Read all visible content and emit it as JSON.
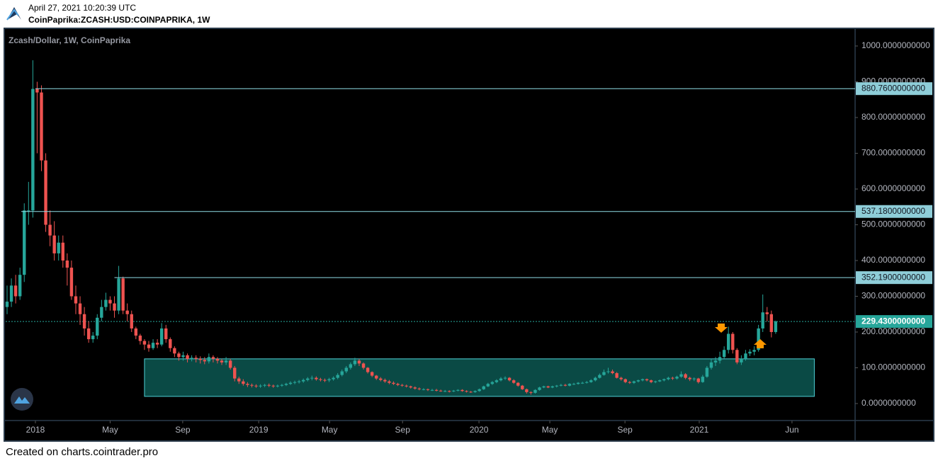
{
  "header": {
    "timestamp": "April 27, 2021 10:20:39 UTC",
    "symbol": "CoinPaprika:ZCASH:USD:COINPAPRIKA, 1W"
  },
  "footer": "Created on charts.cointrader.pro",
  "chart_data": {
    "type": "candlestick",
    "title": "Zcash/Dollar, 1W, CoinPaprika",
    "up_color": "#26a69a",
    "down_color": "#ef5350",
    "categories": [
      null,
      null,
      null,
      null,
      null,
      null,
      null,
      null,
      null,
      null,
      null,
      null,
      null,
      null,
      null,
      null,
      null,
      null,
      null,
      null,
      null,
      null,
      null,
      null,
      null,
      null,
      null,
      null,
      null,
      null,
      null,
      null,
      null,
      null,
      null,
      null,
      null,
      null,
      null,
      null,
      null,
      null,
      null,
      null,
      null,
      null,
      null,
      null,
      null,
      null,
      null,
      null,
      null,
      null,
      null,
      null,
      null,
      null,
      null,
      null,
      null,
      null,
      null,
      null,
      null,
      null,
      null,
      null,
      null,
      null,
      null,
      null,
      null,
      null,
      null,
      null,
      null,
      null,
      null,
      null,
      null,
      null,
      null,
      null,
      null,
      null,
      null,
      null,
      null,
      null,
      null,
      null,
      null,
      null,
      null,
      null,
      null,
      null,
      null,
      null,
      null,
      null,
      null,
      null,
      null,
      null,
      null,
      null,
      null,
      null,
      null,
      null,
      null,
      null,
      null,
      null,
      null,
      null,
      null,
      null,
      null,
      null,
      null,
      null,
      null,
      null,
      null,
      null,
      null,
      null,
      null,
      null,
      null,
      null,
      null,
      null,
      null,
      null,
      null,
      null,
      null,
      null,
      null,
      null,
      null,
      null,
      null,
      null,
      null,
      null,
      null,
      null,
      null,
      null,
      null,
      null,
      null,
      null,
      null,
      null,
      null,
      null,
      null,
      null,
      null,
      null,
      null,
      null,
      null,
      null,
      null,
      null,
      null,
      null,
      null,
      null,
      null,
      null,
      null,
      null
    ],
    "open": [
      270,
      285,
      330,
      300,
      360,
      540,
      540,
      880,
      870,
      680,
      500,
      470,
      420,
      450,
      400,
      380,
      300,
      280,
      250,
      210,
      180,
      190,
      240,
      270,
      290,
      280,
      260,
      350,
      260,
      250,
      210,
      190,
      175,
      165,
      155,
      170,
      165,
      210,
      180,
      155,
      140,
      130,
      135,
      125,
      128,
      125,
      122,
      118,
      130,
      125,
      120,
      115,
      120,
      100,
      70,
      62,
      55,
      52,
      50,
      48,
      50,
      52,
      50,
      48,
      50,
      52,
      55,
      58,
      60,
      62,
      66,
      70,
      72,
      68,
      66,
      65,
      68,
      72,
      80,
      90,
      100,
      110,
      120,
      112,
      100,
      88,
      78,
      70,
      66,
      62,
      58,
      55,
      52,
      50,
      48,
      45,
      42,
      40,
      40,
      38,
      38,
      36,
      35,
      35,
      34,
      36,
      38,
      35,
      33,
      32,
      35,
      40,
      48,
      55,
      60,
      65,
      70,
      72,
      65,
      58,
      50,
      40,
      32,
      30,
      38,
      45,
      48,
      45,
      48,
      50,
      52,
      50,
      55,
      55,
      58,
      58,
      60,
      65,
      72,
      80,
      88,
      90,
      85,
      72,
      68,
      60,
      58,
      62,
      65,
      68,
      65,
      60,
      62,
      65,
      68,
      72,
      70,
      75,
      82,
      72,
      68,
      70,
      60,
      75,
      100,
      115,
      120,
      130,
      150,
      195,
      150,
      115,
      125,
      140,
      145,
      150,
      210,
      255,
      250,
      200
    ],
    "high": [
      330,
      350,
      360,
      380,
      560,
      620,
      960,
      900,
      890,
      700,
      540,
      510,
      470,
      470,
      420,
      400,
      330,
      300,
      270,
      230,
      200,
      250,
      290,
      310,
      300,
      300,
      385,
      355,
      280,
      260,
      215,
      195,
      180,
      175,
      180,
      180,
      225,
      220,
      185,
      160,
      145,
      145,
      140,
      135,
      135,
      132,
      130,
      140,
      135,
      130,
      125,
      130,
      125,
      105,
      75,
      68,
      60,
      56,
      54,
      54,
      55,
      56,
      53,
      53,
      55,
      58,
      62,
      64,
      66,
      70,
      74,
      78,
      76,
      72,
      70,
      72,
      76,
      85,
      95,
      105,
      115,
      128,
      125,
      115,
      102,
      90,
      80,
      74,
      70,
      66,
      62,
      58,
      55,
      53,
      50,
      48,
      45,
      43,
      42,
      41,
      41,
      39,
      38,
      37,
      38,
      40,
      40,
      37,
      35,
      37,
      42,
      50,
      58,
      63,
      68,
      74,
      76,
      74,
      68,
      60,
      52,
      42,
      34,
      40,
      47,
      50,
      50,
      50,
      52,
      55,
      55,
      57,
      58,
      60,
      61,
      63,
      68,
      75,
      84,
      95,
      100,
      95,
      88,
      75,
      70,
      63,
      64,
      67,
      70,
      70,
      67,
      64,
      67,
      70,
      75,
      75,
      78,
      90,
      85,
      75,
      73,
      72,
      80,
      105,
      125,
      130,
      145,
      160,
      215,
      200,
      155,
      135,
      150,
      152,
      160,
      220,
      305,
      270,
      260,
      232
    ],
    "low": [
      250,
      270,
      280,
      290,
      340,
      500,
      520,
      700,
      650,
      480,
      440,
      400,
      400,
      380,
      330,
      290,
      250,
      220,
      190,
      170,
      170,
      180,
      230,
      260,
      260,
      240,
      250,
      250,
      230,
      200,
      180,
      165,
      150,
      145,
      150,
      155,
      160,
      170,
      145,
      130,
      120,
      120,
      115,
      118,
      115,
      112,
      110,
      112,
      115,
      112,
      108,
      108,
      95,
      62,
      55,
      50,
      46,
      45,
      44,
      44,
      46,
      46,
      44,
      45,
      47,
      49,
      52,
      54,
      56,
      58,
      62,
      65,
      64,
      62,
      60,
      60,
      64,
      68,
      76,
      85,
      95,
      105,
      105,
      95,
      84,
      74,
      66,
      62,
      58,
      54,
      52,
      49,
      47,
      45,
      42,
      39,
      37,
      37,
      35,
      35,
      34,
      33,
      32,
      31,
      32,
      34,
      33,
      31,
      30,
      30,
      33,
      38,
      46,
      52,
      57,
      62,
      66,
      62,
      55,
      47,
      38,
      28,
      25,
      28,
      36,
      43,
      43,
      43,
      45,
      48,
      48,
      48,
      52,
      53,
      55,
      56,
      58,
      62,
      70,
      78,
      84,
      82,
      70,
      64,
      57,
      55,
      55,
      59,
      62,
      62,
      57,
      57,
      60,
      62,
      65,
      66,
      67,
      72,
      68,
      63,
      63,
      56,
      58,
      72,
      95,
      105,
      112,
      125,
      140,
      140,
      110,
      108,
      120,
      133,
      135,
      145,
      200,
      230,
      185,
      195
    ],
    "close": [
      285,
      330,
      300,
      360,
      540,
      540,
      880,
      870,
      680,
      500,
      470,
      420,
      450,
      400,
      380,
      300,
      280,
      250,
      210,
      180,
      190,
      240,
      270,
      290,
      280,
      260,
      350,
      260,
      250,
      210,
      190,
      175,
      165,
      155,
      170,
      165,
      210,
      180,
      155,
      140,
      130,
      135,
      125,
      128,
      125,
      122,
      118,
      130,
      125,
      120,
      115,
      120,
      100,
      70,
      62,
      55,
      52,
      50,
      48,
      50,
      52,
      50,
      48,
      50,
      52,
      55,
      58,
      60,
      62,
      66,
      70,
      72,
      68,
      66,
      65,
      68,
      72,
      80,
      90,
      100,
      110,
      120,
      112,
      100,
      88,
      78,
      70,
      66,
      62,
      58,
      55,
      52,
      50,
      48,
      45,
      42,
      40,
      40,
      38,
      38,
      36,
      35,
      35,
      34,
      36,
      38,
      35,
      33,
      32,
      35,
      40,
      48,
      55,
      60,
      65,
      70,
      72,
      65,
      58,
      50,
      40,
      32,
      30,
      38,
      45,
      48,
      45,
      48,
      50,
      52,
      50,
      55,
      55,
      58,
      58,
      60,
      65,
      72,
      80,
      88,
      90,
      85,
      72,
      68,
      60,
      58,
      62,
      65,
      68,
      65,
      60,
      62,
      65,
      68,
      72,
      70,
      75,
      82,
      72,
      68,
      70,
      60,
      75,
      100,
      115,
      120,
      130,
      150,
      195,
      150,
      115,
      125,
      140,
      145,
      150,
      210,
      255,
      250,
      200,
      229.43
    ],
    "xlim": [
      -0.33,
      197.5
    ],
    "xticks": [
      {
        "value": 6.6,
        "label": "2018"
      },
      {
        "value": 24,
        "label": "May"
      },
      {
        "value": 40.9,
        "label": "Sep"
      },
      {
        "value": 58.6,
        "label": "2019"
      },
      {
        "value": 75.1,
        "label": "May"
      },
      {
        "value": 92.1,
        "label": "Sep"
      },
      {
        "value": 109.9,
        "label": "2020"
      },
      {
        "value": 126.4,
        "label": "May"
      },
      {
        "value": 143.9,
        "label": "Sep"
      },
      {
        "value": 161.2,
        "label": "2021"
      },
      {
        "value": 182.8,
        "label": "Jun"
      }
    ],
    "ylim": [
      -47.5,
      1045.5
    ],
    "yticks": [
      {
        "value": 0,
        "label": "0.0000000000"
      },
      {
        "value": 100,
        "label": "100.0000000000"
      },
      {
        "value": 200,
        "label": "200.0000000000"
      },
      {
        "value": 300,
        "label": "300.0000000000"
      },
      {
        "value": 400,
        "label": "400.0000000000"
      },
      {
        "value": 500,
        "label": "500.0000000000"
      },
      {
        "value": 600,
        "label": "600.0000000000"
      },
      {
        "value": 700,
        "label": "700.0000000000"
      },
      {
        "value": 800,
        "label": "800.0000000000"
      },
      {
        "value": 900,
        "label": "900.0000000000"
      },
      {
        "value": 1000,
        "label": "1000.0000000000"
      }
    ],
    "levels": [
      {
        "value": 880.76,
        "label": "880.7600000000",
        "from": 6.6
      },
      {
        "value": 537.18,
        "label": "537.1800000000",
        "from": 3.3
      },
      {
        "value": 352.19,
        "label": "352.1900000000",
        "from": 25
      }
    ],
    "last_price": {
      "value": 229.43,
      "label": "229.4300000000"
    },
    "zone": {
      "x": [
        32,
        188
      ],
      "y": [
        20,
        125
      ]
    }
  }
}
